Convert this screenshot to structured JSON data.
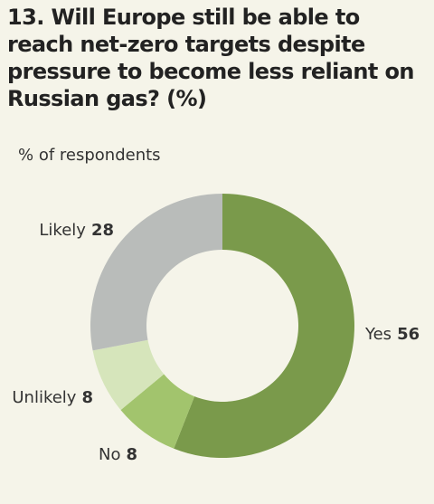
{
  "chart_data": {
    "type": "donut",
    "title": "13. Will Europe still be able to reach net-zero targets despite pressure to become less reliant on Russian gas? (%)",
    "subtitle": "% of respondents",
    "categories": [
      "Yes",
      "No",
      "Unlikely",
      "Likely"
    ],
    "values": [
      56,
      8,
      8,
      28
    ],
    "colors": [
      "#7a9a4b",
      "#a2c46d",
      "#d6e5bb",
      "#b9bcba"
    ]
  }
}
